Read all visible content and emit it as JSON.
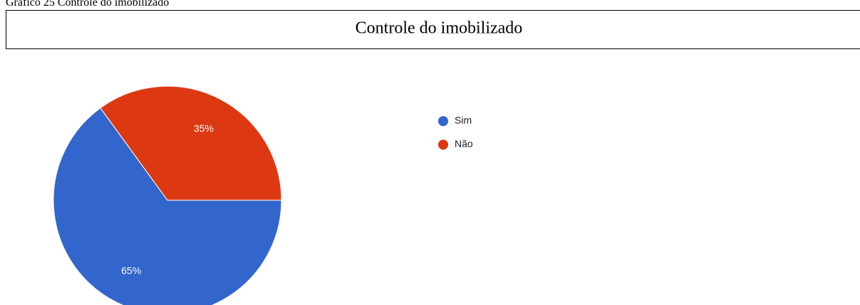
{
  "caption": "Gráfico 25 Controle do imobilizado",
  "chart_data": {
    "type": "pie",
    "title": "Controle do imobilizado",
    "categories": [
      "Sim",
      "Não"
    ],
    "values": [
      65,
      35
    ],
    "value_labels": [
      "65%",
      "35%"
    ],
    "colors": [
      "#3366cc",
      "#dc3912"
    ],
    "legend": "right"
  }
}
